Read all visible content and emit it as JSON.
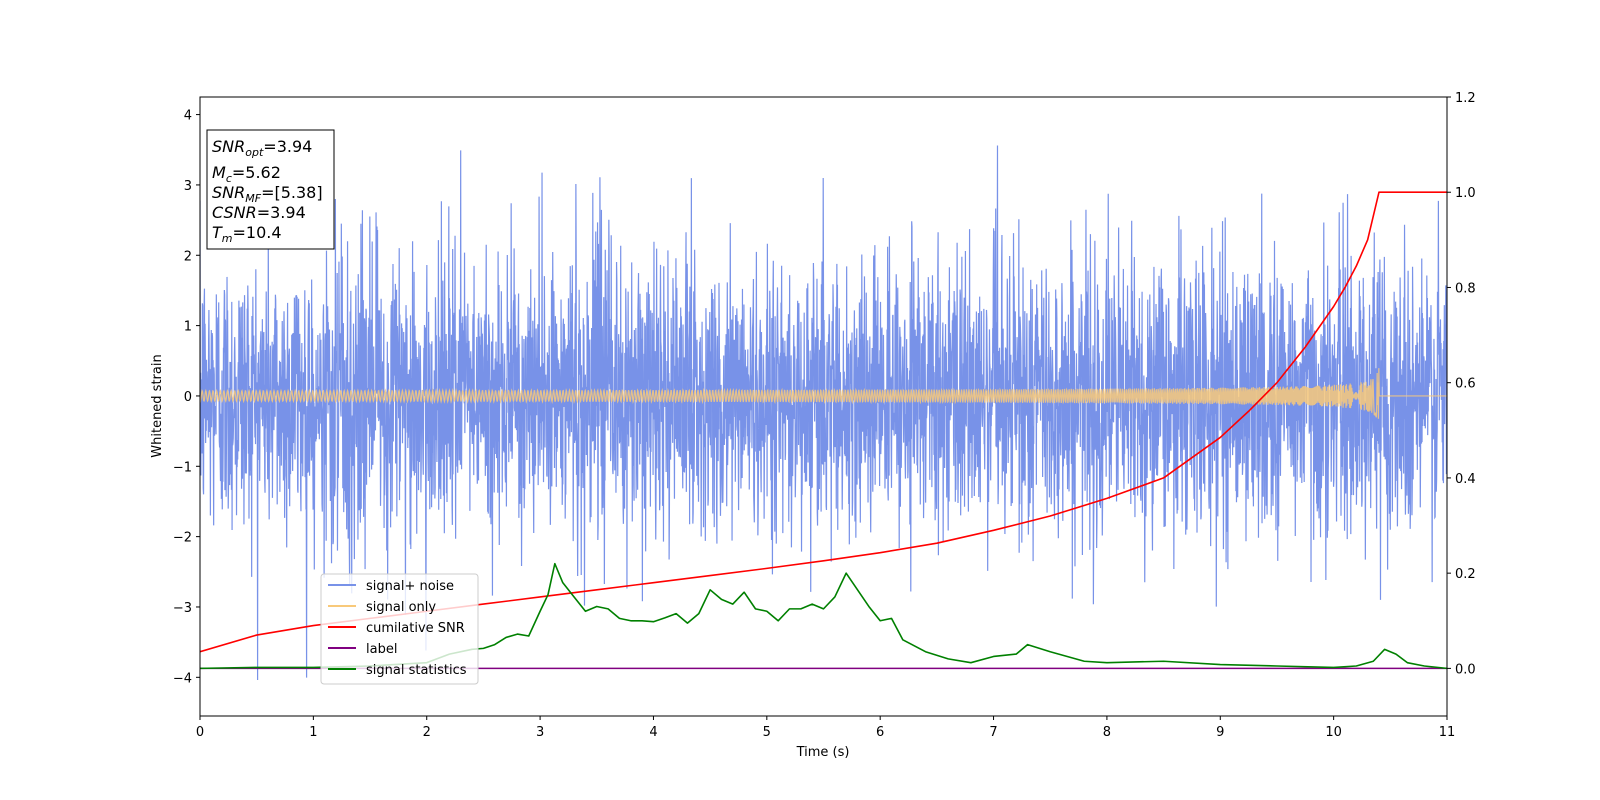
{
  "chart_data": {
    "type": "line",
    "xlabel": "Time (s)",
    "ylabel": "Whitened strain",
    "xlim": [
      0,
      11
    ],
    "ylim_left": [
      -4.55,
      4.25
    ],
    "ylim_right": [
      -0.1,
      1.2
    ],
    "x_ticks": [
      0,
      1,
      2,
      3,
      4,
      5,
      6,
      7,
      8,
      9,
      10,
      11
    ],
    "y_left_ticks": [
      -4,
      -3,
      -2,
      -1,
      0,
      1,
      2,
      3,
      4
    ],
    "y_left_tick_labels": [
      "−4",
      "−3",
      "−2",
      "−1",
      "0",
      "1",
      "2",
      "3",
      "4"
    ],
    "y_right_ticks": [
      0.0,
      0.2,
      0.4,
      0.6,
      0.8,
      1.0,
      1.2
    ],
    "y_right_tick_labels": [
      "0.0",
      "0.2",
      "0.4",
      "0.6",
      "0.8",
      "1.0",
      "1.2"
    ],
    "grid": false,
    "legend_position": "lower-left",
    "info_box": [
      {
        "base": "SNR",
        "sub": "opt",
        "rest": "=3.94"
      },
      {
        "base": "M",
        "sub": "c",
        "rest": "=5.62"
      },
      {
        "base": "SNR",
        "sub": "MF",
        "rest": "=[5.38]"
      },
      {
        "base": "CSNR",
        "sub": "",
        "rest": "=3.94"
      },
      {
        "base": "T",
        "sub": "m",
        "rest": "=10.4"
      }
    ],
    "series": [
      {
        "name": "signal+ noise",
        "color": "#7892e8",
        "axis": "left",
        "kind": "noise",
        "sigma": 1.0,
        "range": [
          -4.15,
          3.85
        ]
      },
      {
        "name": "signal only",
        "color": "#f8c97a",
        "axis": "left",
        "kind": "chirp",
        "merger_time": 10.4,
        "peak_amplitude": 0.5
      },
      {
        "name": "cumilative SNR",
        "color": "#ff0000",
        "axis": "right",
        "x": [
          0,
          0.5,
          1,
          1.5,
          2,
          2.5,
          3,
          3.5,
          4,
          4.5,
          5,
          5.5,
          6,
          6.5,
          7,
          7.5,
          8,
          8.5,
          9,
          9.25,
          9.5,
          9.75,
          10,
          10.1,
          10.2,
          10.3,
          10.4,
          11
        ],
        "y": [
          0.035,
          0.07,
          0.09,
          0.105,
          0.12,
          0.135,
          0.15,
          0.165,
          0.18,
          0.195,
          0.21,
          0.226,
          0.243,
          0.263,
          0.29,
          0.32,
          0.357,
          0.4,
          0.485,
          0.54,
          0.6,
          0.675,
          0.76,
          0.8,
          0.845,
          0.9,
          1.0,
          1.0
        ]
      },
      {
        "name": "label",
        "color": "#800080",
        "axis": "right",
        "x": [
          0,
          11
        ],
        "y": [
          0.0,
          0.0
        ]
      },
      {
        "name": "signal statistics",
        "color": "#008000",
        "axis": "right",
        "x": [
          0,
          0.5,
          1,
          1.5,
          2,
          2.2,
          2.4,
          2.5,
          2.6,
          2.7,
          2.8,
          2.9,
          3.0,
          3.07,
          3.13,
          3.2,
          3.3,
          3.4,
          3.5,
          3.6,
          3.7,
          3.8,
          3.9,
          4.0,
          4.1,
          4.2,
          4.3,
          4.4,
          4.5,
          4.6,
          4.7,
          4.8,
          4.9,
          5.0,
          5.1,
          5.2,
          5.3,
          5.4,
          5.5,
          5.6,
          5.7,
          5.8,
          5.9,
          6.0,
          6.1,
          6.2,
          6.4,
          6.6,
          6.8,
          7.0,
          7.2,
          7.3,
          7.5,
          7.8,
          8.0,
          8.5,
          9.0,
          9.5,
          10.0,
          10.2,
          10.35,
          10.45,
          10.55,
          10.65,
          10.8,
          11.0
        ],
        "y": [
          0.0,
          0.002,
          0.002,
          0.005,
          0.012,
          0.03,
          0.04,
          0.042,
          0.05,
          0.065,
          0.072,
          0.068,
          0.12,
          0.155,
          0.22,
          0.18,
          0.15,
          0.12,
          0.13,
          0.125,
          0.105,
          0.1,
          0.1,
          0.098,
          0.106,
          0.115,
          0.095,
          0.115,
          0.165,
          0.145,
          0.135,
          0.16,
          0.125,
          0.12,
          0.1,
          0.125,
          0.125,
          0.135,
          0.125,
          0.15,
          0.2,
          0.165,
          0.13,
          0.1,
          0.105,
          0.06,
          0.035,
          0.02,
          0.012,
          0.025,
          0.03,
          0.05,
          0.035,
          0.015,
          0.012,
          0.015,
          0.008,
          0.005,
          0.002,
          0.005,
          0.015,
          0.04,
          0.03,
          0.012,
          0.005,
          0.0
        ]
      }
    ]
  }
}
